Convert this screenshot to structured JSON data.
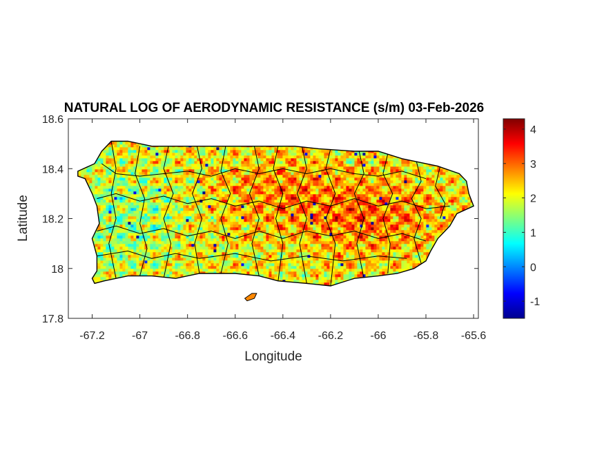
{
  "chart_data": {
    "type": "heatmap",
    "title": "NATURAL LOG OF AERODYNAMIC RESISTANCE (s/m) 03-Feb-2026",
    "xlabel": "Longitude",
    "ylabel": "Latitude",
    "xlim": [
      -67.3,
      -65.58
    ],
    "ylim": [
      17.8,
      18.6
    ],
    "xticks": [
      -67.2,
      -67,
      -66.8,
      -66.6,
      -66.4,
      -66.2,
      -66,
      -65.8,
      -65.6
    ],
    "xtick_labels": [
      "-67.2",
      "-67",
      "-66.8",
      "-66.6",
      "-66.4",
      "-66.2",
      "-66",
      "-65.8",
      "-65.6"
    ],
    "yticks": [
      17.8,
      18,
      18.2,
      18.4,
      18.6
    ],
    "ytick_labels": [
      "17.8",
      "18",
      "18.2",
      "18.4",
      "18.6"
    ],
    "colorbar": {
      "colormap": "jet",
      "clim": [
        -1.5,
        4.3
      ],
      "ticks": [
        -1,
        0,
        1,
        2,
        3,
        4
      ],
      "tick_labels": [
        "-1",
        "0",
        "1",
        "2",
        "3",
        "4"
      ]
    },
    "grid": false,
    "region": "Puerto Rico municipalities",
    "island_outline": [
      [
        -67.26,
        18.37
      ],
      [
        -67.23,
        18.36
      ],
      [
        -67.2,
        18.3
      ],
      [
        -67.18,
        18.25
      ],
      [
        -67.17,
        18.18
      ],
      [
        -67.2,
        18.12
      ],
      [
        -67.18,
        18.05
      ],
      [
        -67.18,
        17.99
      ],
      [
        -67.2,
        17.96
      ],
      [
        -67.19,
        17.94
      ],
      [
        -67.15,
        17.95
      ],
      [
        -67.05,
        17.97
      ],
      [
        -66.95,
        17.97
      ],
      [
        -66.85,
        17.96
      ],
      [
        -66.75,
        17.98
      ],
      [
        -66.6,
        17.98
      ],
      [
        -66.5,
        17.97
      ],
      [
        -66.42,
        17.95
      ],
      [
        -66.3,
        17.94
      ],
      [
        -66.2,
        17.93
      ],
      [
        -66.1,
        17.96
      ],
      [
        -66.0,
        17.97
      ],
      [
        -65.92,
        17.98
      ],
      [
        -65.85,
        18.0
      ],
      [
        -65.8,
        18.03
      ],
      [
        -65.78,
        18.07
      ],
      [
        -65.75,
        18.12
      ],
      [
        -65.7,
        18.17
      ],
      [
        -65.67,
        18.22
      ],
      [
        -65.6,
        18.25
      ],
      [
        -65.62,
        18.3
      ],
      [
        -65.63,
        18.35
      ],
      [
        -65.66,
        18.38
      ],
      [
        -65.75,
        18.41
      ],
      [
        -65.9,
        18.44
      ],
      [
        -66.0,
        18.47
      ],
      [
        -66.1,
        18.47
      ],
      [
        -66.25,
        18.48
      ],
      [
        -66.35,
        18.49
      ],
      [
        -66.5,
        18.49
      ],
      [
        -66.65,
        18.49
      ],
      [
        -66.8,
        18.49
      ],
      [
        -66.95,
        18.49
      ],
      [
        -67.05,
        18.51
      ],
      [
        -67.12,
        18.51
      ],
      [
        -67.16,
        18.47
      ],
      [
        -67.19,
        18.42
      ],
      [
        -67.26,
        18.39
      ]
    ],
    "municipality_boundaries": [
      [
        [
          -67.16,
          18.42
        ],
        [
          -67.1,
          18.38
        ],
        [
          -67.0,
          18.37
        ],
        [
          -66.9,
          18.38
        ],
        [
          -66.8,
          18.39
        ],
        [
          -66.7,
          18.37
        ],
        [
          -66.6,
          18.4
        ],
        [
          -66.5,
          18.38
        ],
        [
          -66.4,
          18.4
        ],
        [
          -66.3,
          18.38
        ],
        [
          -66.2,
          18.4
        ],
        [
          -66.1,
          18.38
        ],
        [
          -66.0,
          18.37
        ],
        [
          -65.9,
          18.39
        ],
        [
          -65.8,
          18.36
        ]
      ],
      [
        [
          -67.18,
          18.28
        ],
        [
          -67.1,
          18.3
        ],
        [
          -67.0,
          18.27
        ],
        [
          -66.9,
          18.29
        ],
        [
          -66.8,
          18.26
        ],
        [
          -66.7,
          18.28
        ],
        [
          -66.6,
          18.25
        ],
        [
          -66.5,
          18.27
        ],
        [
          -66.4,
          18.24
        ],
        [
          -66.3,
          18.27
        ],
        [
          -66.2,
          18.25
        ],
        [
          -66.1,
          18.28
        ],
        [
          -66.0,
          18.25
        ],
        [
          -65.9,
          18.27
        ],
        [
          -65.8,
          18.24
        ],
        [
          -65.7,
          18.25
        ]
      ],
      [
        [
          -67.18,
          18.15
        ],
        [
          -67.1,
          18.17
        ],
        [
          -67.0,
          18.14
        ],
        [
          -66.9,
          18.16
        ],
        [
          -66.8,
          18.13
        ],
        [
          -66.7,
          18.15
        ],
        [
          -66.6,
          18.12
        ],
        [
          -66.5,
          18.15
        ],
        [
          -66.4,
          18.12
        ],
        [
          -66.3,
          18.15
        ],
        [
          -66.2,
          18.13
        ],
        [
          -66.1,
          18.15
        ],
        [
          -66.0,
          18.12
        ],
        [
          -65.9,
          18.14
        ],
        [
          -65.8,
          18.11
        ]
      ],
      [
        [
          -67.18,
          18.05
        ],
        [
          -67.05,
          18.07
        ],
        [
          -66.95,
          18.04
        ],
        [
          -66.85,
          18.06
        ],
        [
          -66.75,
          18.04
        ],
        [
          -66.6,
          18.06
        ],
        [
          -66.45,
          18.03
        ],
        [
          -66.3,
          18.05
        ],
        [
          -66.15,
          18.03
        ],
        [
          -66.0,
          18.05
        ],
        [
          -65.88,
          18.04
        ]
      ],
      [
        [
          -67.12,
          18.51
        ],
        [
          -67.1,
          18.4
        ],
        [
          -67.12,
          18.3
        ],
        [
          -67.1,
          18.2
        ],
        [
          -67.13,
          18.1
        ],
        [
          -67.1,
          17.96
        ]
      ],
      [
        [
          -67.0,
          18.49
        ],
        [
          -67.02,
          18.38
        ],
        [
          -66.98,
          18.28
        ],
        [
          -67.0,
          18.18
        ],
        [
          -66.97,
          18.08
        ],
        [
          -67.0,
          17.97
        ]
      ],
      [
        [
          -66.88,
          18.49
        ],
        [
          -66.9,
          18.4
        ],
        [
          -66.86,
          18.3
        ],
        [
          -66.9,
          18.2
        ],
        [
          -66.87,
          18.1
        ],
        [
          -66.9,
          17.96
        ]
      ],
      [
        [
          -66.76,
          18.49
        ],
        [
          -66.74,
          18.4
        ],
        [
          -66.78,
          18.3
        ],
        [
          -66.74,
          18.2
        ],
        [
          -66.77,
          18.1
        ],
        [
          -66.75,
          17.98
        ]
      ],
      [
        [
          -66.64,
          18.49
        ],
        [
          -66.66,
          18.39
        ],
        [
          -66.62,
          18.3
        ],
        [
          -66.66,
          18.2
        ],
        [
          -66.63,
          18.1
        ],
        [
          -66.66,
          17.98
        ]
      ],
      [
        [
          -66.52,
          18.49
        ],
        [
          -66.5,
          18.4
        ],
        [
          -66.54,
          18.3
        ],
        [
          -66.5,
          18.2
        ],
        [
          -66.53,
          18.1
        ],
        [
          -66.5,
          17.97
        ]
      ],
      [
        [
          -66.42,
          18.49
        ],
        [
          -66.44,
          18.4
        ],
        [
          -66.4,
          18.3
        ],
        [
          -66.43,
          18.2
        ],
        [
          -66.4,
          18.1
        ],
        [
          -66.42,
          17.95
        ]
      ],
      [
        [
          -66.32,
          18.49
        ],
        [
          -66.3,
          18.4
        ],
        [
          -66.34,
          18.3
        ],
        [
          -66.3,
          18.2
        ],
        [
          -66.33,
          18.1
        ],
        [
          -66.3,
          17.94
        ]
      ],
      [
        [
          -66.2,
          18.48
        ],
        [
          -66.22,
          18.4
        ],
        [
          -66.18,
          18.3
        ],
        [
          -66.22,
          18.2
        ],
        [
          -66.18,
          18.1
        ],
        [
          -66.2,
          17.93
        ]
      ],
      [
        [
          -66.08,
          18.47
        ],
        [
          -66.06,
          18.38
        ],
        [
          -66.1,
          18.3
        ],
        [
          -66.06,
          18.2
        ],
        [
          -66.09,
          18.1
        ],
        [
          -66.06,
          17.96
        ]
      ],
      [
        [
          -65.96,
          18.46
        ],
        [
          -65.98,
          18.38
        ],
        [
          -65.94,
          18.3
        ],
        [
          -65.98,
          18.2
        ],
        [
          -65.95,
          18.1
        ],
        [
          -65.96,
          17.98
        ]
      ],
      [
        [
          -65.84,
          18.43
        ],
        [
          -65.82,
          18.35
        ],
        [
          -65.86,
          18.28
        ],
        [
          -65.82,
          18.2
        ],
        [
          -65.85,
          18.12
        ],
        [
          -65.82,
          18.02
        ]
      ],
      [
        [
          -65.74,
          18.41
        ],
        [
          -65.76,
          18.33
        ],
        [
          -65.72,
          18.26
        ],
        [
          -65.74,
          18.2
        ]
      ]
    ],
    "offshore_islands": [
      {
        "name": "",
        "points": [
          [
            -66.56,
            17.88
          ],
          [
            -66.53,
            17.9
          ],
          [
            -66.51,
            17.9
          ],
          [
            -66.52,
            17.88
          ],
          [
            -66.55,
            17.87
          ]
        ]
      }
    ]
  },
  "colors": {
    "axes_border": "#262626",
    "municipality_line": "#000000",
    "background": "#ffffff"
  }
}
